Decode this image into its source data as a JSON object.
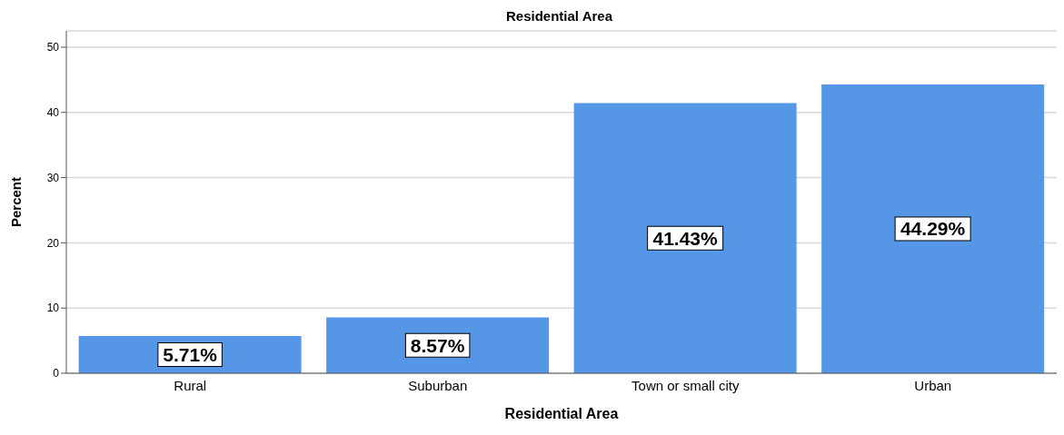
{
  "chart_data": {
    "type": "bar",
    "title": "Residential Area",
    "xlabel": "Residential Area",
    "ylabel": "Percent",
    "categories": [
      "Rural",
      "Suburban",
      "Town or small city",
      "Urban"
    ],
    "values": [
      5.71,
      8.57,
      41.43,
      44.29
    ],
    "value_labels": [
      "5.71%",
      "8.57%",
      "41.43%",
      "44.29%"
    ],
    "color": "#5596e6",
    "ylim": [
      0,
      52.5
    ],
    "yticks": [
      0,
      10,
      20,
      30,
      40,
      50
    ],
    "grid": "y"
  }
}
